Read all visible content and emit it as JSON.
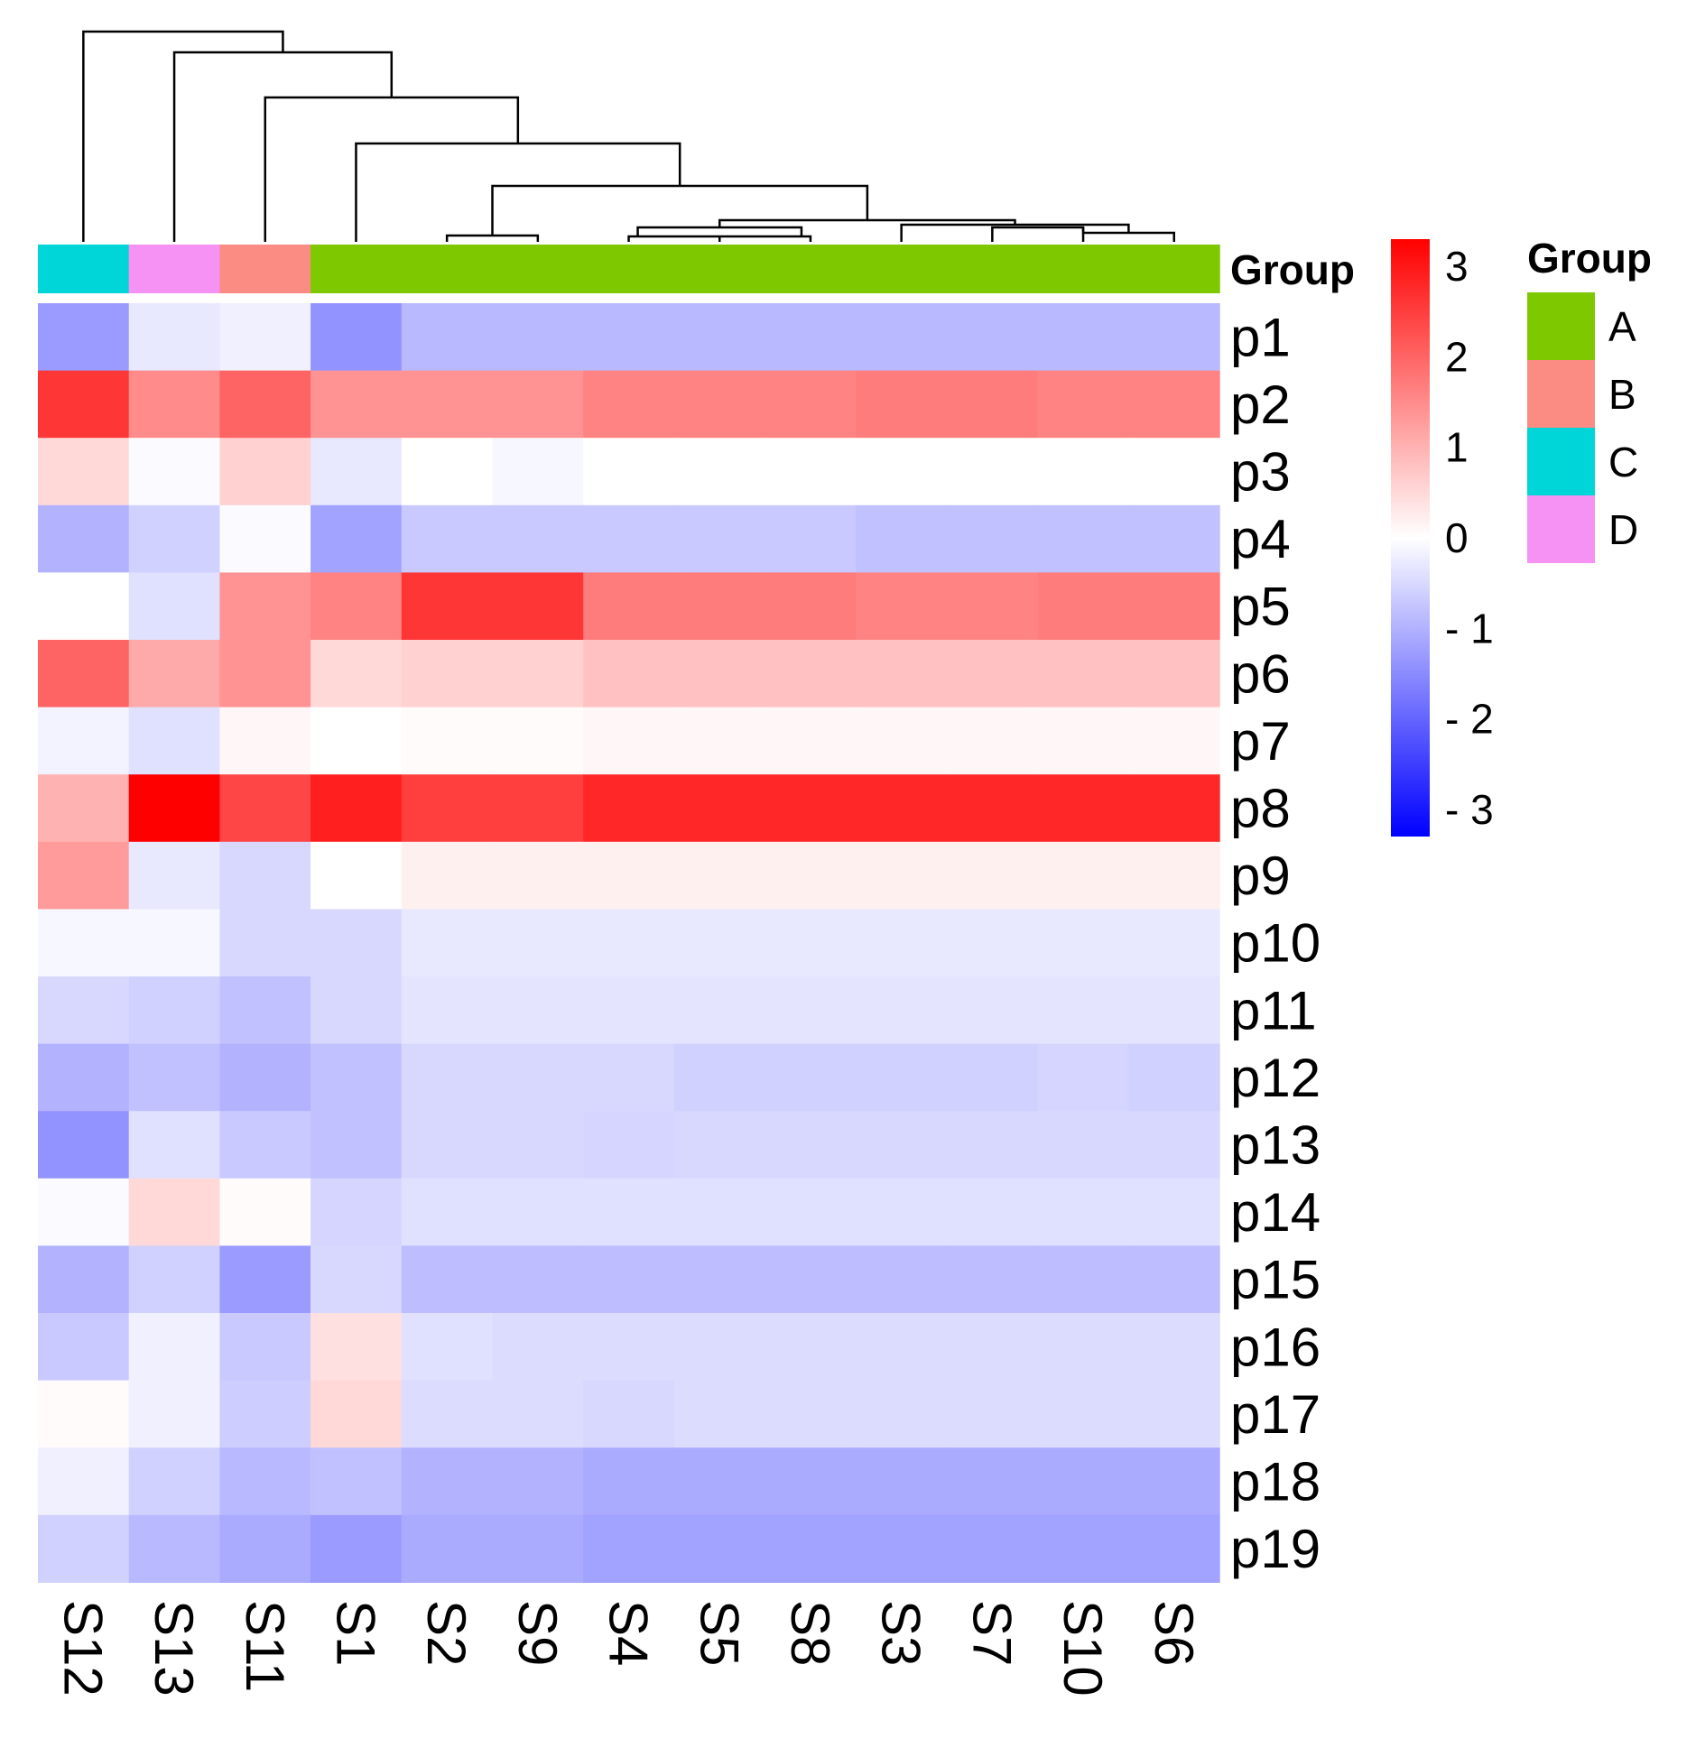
{
  "chart_data": {
    "type": "heatmap",
    "title": "",
    "columns": [
      "S12",
      "S13",
      "S11",
      "S1",
      "S2",
      "S9",
      "S4",
      "S5",
      "S8",
      "S3",
      "S7",
      "S10",
      "S6"
    ],
    "rows": [
      "p1",
      "p2",
      "p3",
      "p4",
      "p5",
      "p6",
      "p7",
      "p8",
      "p9",
      "p10",
      "p11",
      "p12",
      "p13",
      "p14",
      "p15",
      "p16",
      "p17",
      "p18",
      "p19"
    ],
    "values": [
      [
        -1.3,
        -0.3,
        -0.2,
        -1.4,
        -0.9,
        -0.9,
        -0.9,
        -0.9,
        -0.9,
        -0.9,
        -0.9,
        -0.9,
        -0.9
      ],
      [
        2.6,
        1.5,
        2.0,
        1.4,
        1.4,
        1.4,
        1.6,
        1.6,
        1.6,
        1.7,
        1.7,
        1.6,
        1.6
      ],
      [
        0.5,
        -0.05,
        0.6,
        -0.3,
        0.0,
        -0.1,
        0.0,
        0.0,
        0.0,
        0.0,
        0.0,
        0.0,
        0.0
      ],
      [
        -1.0,
        -0.6,
        -0.05,
        -1.2,
        -0.7,
        -0.7,
        -0.7,
        -0.7,
        -0.7,
        -0.8,
        -0.8,
        -0.8,
        -0.8
      ],
      [
        0.0,
        -0.4,
        1.4,
        1.6,
        2.6,
        2.6,
        1.7,
        1.7,
        1.7,
        1.6,
        1.6,
        1.7,
        1.7
      ],
      [
        2.0,
        1.1,
        1.4,
        0.5,
        0.6,
        0.6,
        0.8,
        0.8,
        0.8,
        0.8,
        0.8,
        0.8,
        0.8
      ],
      [
        -0.15,
        -0.4,
        0.1,
        0.0,
        0.05,
        0.05,
        0.1,
        0.1,
        0.1,
        0.1,
        0.1,
        0.1,
        0.1
      ],
      [
        1.0,
        3.3,
        2.4,
        2.9,
        2.5,
        2.5,
        2.8,
        2.8,
        2.8,
        2.8,
        2.8,
        2.8,
        2.8
      ],
      [
        1.3,
        -0.3,
        -0.5,
        0.0,
        0.2,
        0.2,
        0.2,
        0.2,
        0.2,
        0.2,
        0.2,
        0.2,
        0.2
      ],
      [
        -0.1,
        -0.1,
        -0.5,
        -0.5,
        -0.3,
        -0.3,
        -0.3,
        -0.3,
        -0.3,
        -0.3,
        -0.3,
        -0.3,
        -0.3
      ],
      [
        -0.5,
        -0.6,
        -0.8,
        -0.5,
        -0.35,
        -0.35,
        -0.35,
        -0.35,
        -0.35,
        -0.35,
        -0.35,
        -0.35,
        -0.35
      ],
      [
        -1.0,
        -0.8,
        -1.0,
        -0.8,
        -0.5,
        -0.5,
        -0.5,
        -0.6,
        -0.6,
        -0.6,
        -0.6,
        -0.55,
        -0.6
      ],
      [
        -1.4,
        -0.4,
        -0.7,
        -0.8,
        -0.5,
        -0.5,
        -0.55,
        -0.5,
        -0.5,
        -0.5,
        -0.5,
        -0.5,
        -0.5
      ],
      [
        -0.05,
        0.5,
        0.05,
        -0.55,
        -0.4,
        -0.4,
        -0.4,
        -0.4,
        -0.4,
        -0.4,
        -0.4,
        -0.4,
        -0.4
      ],
      [
        -1.0,
        -0.6,
        -1.3,
        -0.5,
        -0.85,
        -0.85,
        -0.85,
        -0.85,
        -0.85,
        -0.85,
        -0.85,
        -0.85,
        -0.85
      ],
      [
        -0.7,
        -0.2,
        -0.7,
        0.4,
        -0.4,
        -0.45,
        -0.45,
        -0.45,
        -0.45,
        -0.45,
        -0.45,
        -0.45,
        -0.45
      ],
      [
        0.05,
        -0.2,
        -0.65,
        0.5,
        -0.45,
        -0.45,
        -0.5,
        -0.45,
        -0.45,
        -0.45,
        -0.45,
        -0.45,
        -0.45
      ],
      [
        -0.2,
        -0.6,
        -0.9,
        -0.8,
        -1.0,
        -1.0,
        -1.1,
        -1.1,
        -1.1,
        -1.1,
        -1.1,
        -1.1,
        -1.1
      ],
      [
        -0.6,
        -0.9,
        -1.1,
        -1.3,
        -1.1,
        -1.1,
        -1.2,
        -1.2,
        -1.2,
        -1.2,
        -1.2,
        -1.2,
        -1.2
      ]
    ],
    "color_scale": {
      "min": -3.3,
      "max": 3.3,
      "low_color": "#0000ff",
      "mid_color": "#ffffff",
      "high_color": "#ff0000",
      "ticks": [
        "3",
        "2",
        "1",
        "0",
        "- 1",
        "- 2",
        "- 3"
      ]
    },
    "annotation": {
      "label": "Group",
      "groups": [
        "C",
        "D",
        "B",
        "A",
        "A",
        "A",
        "A",
        "A",
        "A",
        "A",
        "A",
        "A",
        "A"
      ]
    },
    "legend": {
      "title": "Group",
      "placement": "right",
      "entries": [
        {
          "label": "A",
          "color": "#7ec800"
        },
        {
          "label": "B",
          "color": "#fa8c84"
        },
        {
          "label": "C",
          "color": "#00d5d8"
        },
        {
          "label": "D",
          "color": "#f592f3"
        }
      ]
    },
    "dendrogram": "columns"
  }
}
